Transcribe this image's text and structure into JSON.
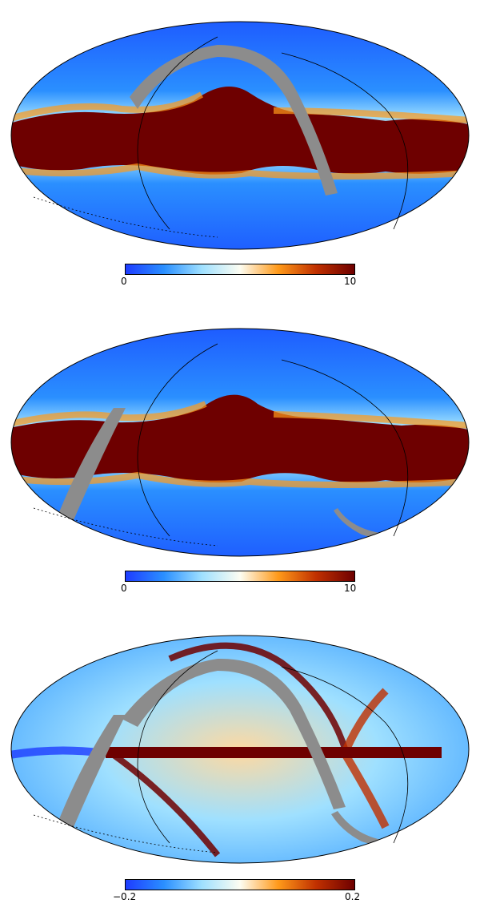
{
  "maps": [
    {
      "id": "map1",
      "projection": "mollweide",
      "colorbar": {
        "min_label": "0",
        "max_label": "10",
        "colormap": "blue-white-orange-darkred"
      },
      "masked_region": "gray scan-strip crossing the upper-left to right side"
    },
    {
      "id": "map2",
      "projection": "mollweide",
      "colorbar": {
        "min_label": "0",
        "max_label": "10",
        "colormap": "blue-white-orange-darkred"
      },
      "masked_region": "gray scan-strip on the left side and a hook at lower right"
    },
    {
      "id": "map3",
      "projection": "mollweide",
      "colorbar": {
        "min_label": "−0.2",
        "max_label": "0.2",
        "colormap": "blue-white-orange-darkred"
      },
      "masked_region": "gray scan-strips on the left and upper arc"
    }
  ],
  "colors": {
    "dark_blue": "#1e3cff",
    "mid_blue": "#2a8fff",
    "light_blue": "#9fe0ff",
    "white": "#fdfdf2",
    "orange": "#ff9a1a",
    "dark_red": "#6e0000",
    "mask_gray": "#8c8c8c"
  }
}
